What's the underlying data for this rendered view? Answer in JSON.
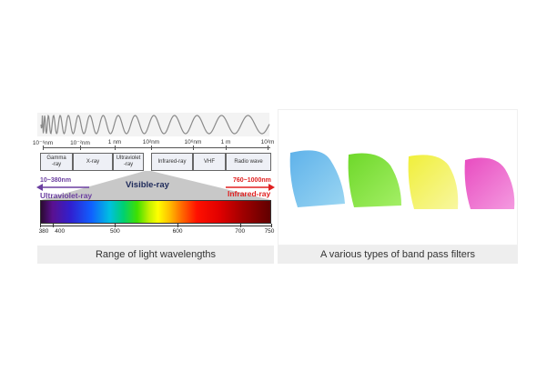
{
  "left_panel": {
    "caption": "Range of light wavelengths",
    "scale_ticks": [
      "10⁻⁶nm",
      "10⁻²nm",
      "1 nm",
      "10²nm",
      "10⁶nm",
      "1 m",
      "10²m"
    ],
    "bands": [
      {
        "label": "Gamma\n-ray"
      },
      {
        "label": "X-ray"
      },
      {
        "label": "Ultraviolet\n-ray"
      },
      {
        "label": "Infrared-ray"
      },
      {
        "label": "VHF"
      },
      {
        "label": "Radio wave"
      }
    ],
    "uv_range": "10~380nm",
    "uv_label": "Ultraviolet-ray",
    "visible_label": "Visible-ray",
    "ir_range": "760~1000nm",
    "ir_label": "Infrared-ray",
    "spectrum_ticks": [
      "380",
      "400",
      "500",
      "600",
      "700",
      "750"
    ],
    "colors": {
      "uv": "#6b3fa0",
      "ir": "#e02020",
      "visible": "#1e2a5a"
    }
  },
  "right_panel": {
    "caption": "A various types of band pass filters",
    "filters": [
      {
        "name": "blue-filter",
        "color": "#6fc1ec"
      },
      {
        "name": "green-filter",
        "color": "#7ee53a"
      },
      {
        "name": "yellow-filter",
        "color": "#f3f25a"
      },
      {
        "name": "pink-filter",
        "color": "#ee5fc9"
      }
    ]
  }
}
